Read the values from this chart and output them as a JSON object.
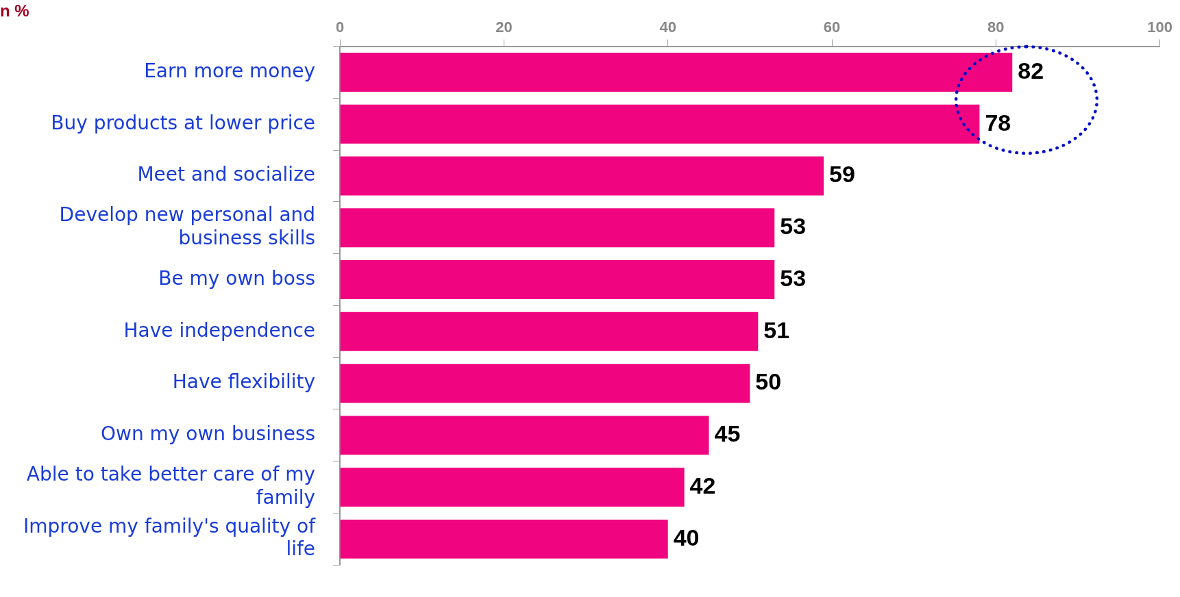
{
  "chart_data": {
    "type": "bar",
    "orientation": "horizontal",
    "annotations": [
      "n %"
    ],
    "categories": [
      "Earn more money",
      "Buy products at lower price",
      "Meet and socialize",
      "Develop new personal and business skills",
      "Be my own boss",
      "Have independence",
      "Have flexibility",
      "Own my own business",
      "Able to take better care of my family",
      "Improve my family's quality of life"
    ],
    "values": [
      82,
      78,
      59,
      53,
      53,
      51,
      50,
      45,
      42,
      40
    ],
    "color": "#f0047f",
    "data_labels": true,
    "xlim": [
      0,
      100
    ],
    "xticks": [
      0,
      20,
      40,
      60,
      80,
      100
    ],
    "grid": false,
    "legend": false
  }
}
